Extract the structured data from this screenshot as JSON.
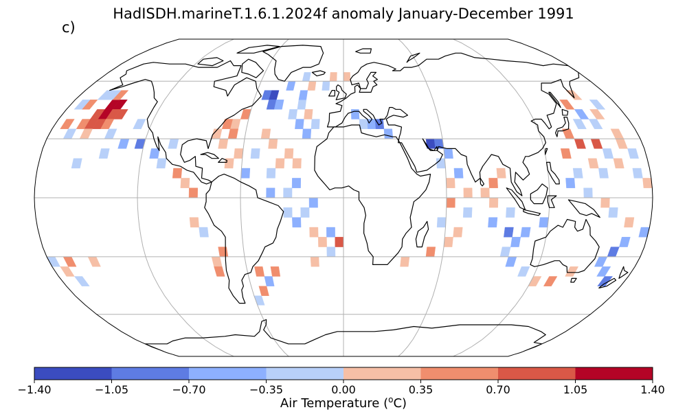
{
  "title": "HadISDH.marineT.1.6.1.2024f anomaly January-December 1991",
  "panel_label": "c)",
  "colorbar": {
    "label_text": "Air Temperature (",
    "label_sup": "o",
    "label_unit": "C)",
    "ticks": [
      "−1.40",
      "−1.05",
      "−0.70",
      "−0.35",
      "0.00",
      "0.35",
      "0.70",
      "1.05",
      "1.40"
    ],
    "bins": [
      -1.4,
      -1.05,
      -0.7,
      -0.35,
      0.0,
      0.35,
      0.7,
      1.05,
      1.4
    ],
    "colors": [
      "#3b4cc0",
      "#5e7ce3",
      "#8db0fe",
      "#b8d0f9",
      "#f6bfa6",
      "#f08e6e",
      "#d95847",
      "#b40426"
    ]
  },
  "map": {
    "projection": "Robinson",
    "central_longitude": 0,
    "grid_spacing_deg": 5,
    "graticule_lon_deg": [
      -120,
      -60,
      0,
      60,
      120
    ],
    "graticule_lat_deg": [
      -60,
      -30,
      0,
      30,
      60
    ],
    "coastline_color": "#000000",
    "gridline_color": "#b0b0b0",
    "anomaly_cells": [
      {
        "lat": 47.5,
        "lon": -152.5,
        "value": 1.2
      },
      {
        "lat": 47.5,
        "lon": -147.5,
        "value": 1.2
      },
      {
        "lat": 42.5,
        "lon": -157.5,
        "value": 0.9
      },
      {
        "lat": 42.5,
        "lon": -152.5,
        "value": 1.2
      },
      {
        "lat": 42.5,
        "lon": -147.5,
        "value": 0.9
      },
      {
        "lat": 42.5,
        "lon": -142.5,
        "value": 0.8
      },
      {
        "lat": 37.5,
        "lon": -162.5,
        "value": 0.5
      },
      {
        "lat": 37.5,
        "lon": -157.5,
        "value": 0.8
      },
      {
        "lat": 37.5,
        "lon": -152.5,
        "value": 0.8
      },
      {
        "lat": 37.5,
        "lon": -147.5,
        "value": 0.5
      },
      {
        "lat": 52.5,
        "lon": -152.5,
        "value": 0.5
      },
      {
        "lat": 52.5,
        "lon": -157.5,
        "value": -0.2
      },
      {
        "lat": 52.5,
        "lon": -162.5,
        "value": -0.2
      },
      {
        "lat": 47.5,
        "lon": -167.5,
        "value": 0.5
      },
      {
        "lat": 47.5,
        "lon": -172.5,
        "value": -0.2
      },
      {
        "lat": 37.5,
        "lon": -172.5,
        "value": 0.5
      },
      {
        "lat": 32.5,
        "lon": -167.5,
        "value": -0.2
      },
      {
        "lat": 32.5,
        "lon": -157.5,
        "value": 0.2
      },
      {
        "lat": 32.5,
        "lon": -142.5,
        "value": -0.2
      },
      {
        "lat": 27.5,
        "lon": -132.5,
        "value": -0.5
      },
      {
        "lat": 27.5,
        "lon": -122.5,
        "value": -0.8
      },
      {
        "lat": 22.5,
        "lon": -112.5,
        "value": -0.5
      },
      {
        "lat": 17.5,
        "lon": -107.5,
        "value": -0.2
      },
      {
        "lat": 12.5,
        "lon": -97.5,
        "value": 0.5
      },
      {
        "lat": 7.5,
        "lon": -92.5,
        "value": 0.2
      },
      {
        "lat": 2.5,
        "lon": -87.5,
        "value": 0.5
      },
      {
        "lat": 52.5,
        "lon": -52.5,
        "value": -0.9
      },
      {
        "lat": 52.5,
        "lon": -47.5,
        "value": -1.2
      },
      {
        "lat": 47.5,
        "lon": -47.5,
        "value": -0.9
      },
      {
        "lat": 47.5,
        "lon": -42.5,
        "value": -0.5
      },
      {
        "lat": 57.5,
        "lon": -37.5,
        "value": -0.5
      },
      {
        "lat": 62.5,
        "lon": -27.5,
        "value": -0.2
      },
      {
        "lat": 57.5,
        "lon": -22.5,
        "value": 0.2
      },
      {
        "lat": 62.5,
        "lon": -7.5,
        "value": 0.2
      },
      {
        "lat": 62.5,
        "lon": 2.5,
        "value": 0.2
      },
      {
        "lat": 42.5,
        "lon": -62.5,
        "value": 0.5
      },
      {
        "lat": 37.5,
        "lon": -67.5,
        "value": 0.2
      },
      {
        "lat": 37.5,
        "lon": -72.5,
        "value": 0.5
      },
      {
        "lat": 32.5,
        "lon": -77.5,
        "value": 0.2
      },
      {
        "lat": 32.5,
        "lon": -67.5,
        "value": 0.5
      },
      {
        "lat": 27.5,
        "lon": -72.5,
        "value": 0.2
      },
      {
        "lat": 22.5,
        "lon": -62.5,
        "value": 0.2
      },
      {
        "lat": 17.5,
        "lon": -67.5,
        "value": 0.2
      },
      {
        "lat": 27.5,
        "lon": -42.5,
        "value": 0.2
      },
      {
        "lat": 22.5,
        "lon": -32.5,
        "value": 0.2
      },
      {
        "lat": 17.5,
        "lon": -27.5,
        "value": 0.2
      },
      {
        "lat": 42.5,
        "lon": -32.5,
        "value": -0.2
      },
      {
        "lat": 37.5,
        "lon": -27.5,
        "value": -0.5
      },
      {
        "lat": 37.5,
        "lon": -17.5,
        "value": -0.2
      },
      {
        "lat": 32.5,
        "lon": -22.5,
        "value": -0.5
      },
      {
        "lat": 12.5,
        "lon": -42.5,
        "value": -0.2
      },
      {
        "lat": 7.5,
        "lon": -27.5,
        "value": -0.5
      },
      {
        "lat": 2.5,
        "lon": -32.5,
        "value": -0.2
      },
      {
        "lat": -2.5,
        "lon": -17.5,
        "value": -0.5
      },
      {
        "lat": -7.5,
        "lon": -22.5,
        "value": -0.2
      },
      {
        "lat": -12.5,
        "lon": -27.5,
        "value": -0.5
      },
      {
        "lat": -17.5,
        "lon": -17.5,
        "value": 0.2
      },
      {
        "lat": -22.5,
        "lon": -2.5,
        "value": 0.9
      },
      {
        "lat": -22.5,
        "lon": -12.5,
        "value": 0.2
      },
      {
        "lat": -17.5,
        "lon": -7.5,
        "value": -0.5
      },
      {
        "lat": -27.5,
        "lon": -7.5,
        "value": -0.2
      },
      {
        "lat": -32.5,
        "lon": -17.5,
        "value": 0.2
      },
      {
        "lat": -37.5,
        "lon": -42.5,
        "value": 0.5
      },
      {
        "lat": -42.5,
        "lon": -47.5,
        "value": -0.5
      },
      {
        "lat": -37.5,
        "lon": -52.5,
        "value": 0.5
      },
      {
        "lat": -47.5,
        "lon": -52.5,
        "value": 0.5
      },
      {
        "lat": -52.5,
        "lon": -57.5,
        "value": -0.2
      },
      {
        "lat": -32.5,
        "lon": -77.5,
        "value": 0.2
      },
      {
        "lat": -27.5,
        "lon": -72.5,
        "value": 0.5
      },
      {
        "lat": -37.5,
        "lon": -77.5,
        "value": 0.5
      },
      {
        "lat": -17.5,
        "lon": -82.5,
        "value": -0.2
      },
      {
        "lat": -12.5,
        "lon": -87.5,
        "value": 0.2
      },
      {
        "lat": 37.5,
        "lon": 12.5,
        "value": -0.2
      },
      {
        "lat": 37.5,
        "lon": 17.5,
        "value": -0.5
      },
      {
        "lat": 37.5,
        "lon": 22.5,
        "value": -0.9
      },
      {
        "lat": 32.5,
        "lon": 27.5,
        "value": -0.5
      },
      {
        "lat": 42.5,
        "lon": 7.5,
        "value": -0.5
      },
      {
        "lat": 27.5,
        "lon": 52.5,
        "value": -1.2
      },
      {
        "lat": 27.5,
        "lon": 57.5,
        "value": -0.9
      },
      {
        "lat": 22.5,
        "lon": 62.5,
        "value": -0.5
      },
      {
        "lat": 17.5,
        "lon": 57.5,
        "value": -0.2
      },
      {
        "lat": 12.5,
        "lon": 67.5,
        "value": -0.5
      },
      {
        "lat": 7.5,
        "lon": 62.5,
        "value": 0.2
      },
      {
        "lat": 2.5,
        "lon": 72.5,
        "value": 0.2
      },
      {
        "lat": -2.5,
        "lon": 62.5,
        "value": 0.5
      },
      {
        "lat": 2.5,
        "lon": 82.5,
        "value": 0.2
      },
      {
        "lat": 7.5,
        "lon": 87.5,
        "value": 0.5
      },
      {
        "lat": 12.5,
        "lon": 92.5,
        "value": 0.2
      },
      {
        "lat": -7.5,
        "lon": 72.5,
        "value": -0.2
      },
      {
        "lat": -12.5,
        "lon": 57.5,
        "value": -0.2
      },
      {
        "lat": -17.5,
        "lon": 67.5,
        "value": 0.2
      },
      {
        "lat": -22.5,
        "lon": 62.5,
        "value": 0.2
      },
      {
        "lat": -27.5,
        "lon": 52.5,
        "value": 0.5
      },
      {
        "lat": -32.5,
        "lon": 37.5,
        "value": 0.2
      },
      {
        "lat": -12.5,
        "lon": 87.5,
        "value": -0.5
      },
      {
        "lat": -17.5,
        "lon": 97.5,
        "value": -0.8
      },
      {
        "lat": -22.5,
        "lon": 102.5,
        "value": -0.5
      },
      {
        "lat": -27.5,
        "lon": 97.5,
        "value": -0.2
      },
      {
        "lat": -32.5,
        "lon": 102.5,
        "value": -0.5
      },
      {
        "lat": -37.5,
        "lon": 112.5,
        "value": -0.2
      },
      {
        "lat": -42.5,
        "lon": 122.5,
        "value": 0.2
      },
      {
        "lat": -42.5,
        "lon": 132.5,
        "value": 0.5
      },
      {
        "lat": -37.5,
        "lon": 142.5,
        "value": 0.2
      },
      {
        "lat": -32.5,
        "lon": 157.5,
        "value": -0.5
      },
      {
        "lat": -27.5,
        "lon": 162.5,
        "value": -0.8
      },
      {
        "lat": -22.5,
        "lon": 167.5,
        "value": -0.5
      },
      {
        "lat": -37.5,
        "lon": 162.5,
        "value": -0.5
      },
      {
        "lat": -42.5,
        "lon": 167.5,
        "value": -0.8
      },
      {
        "lat": -17.5,
        "lon": 177.5,
        "value": -0.5
      },
      {
        "lat": -12.5,
        "lon": 167.5,
        "value": 0.2
      },
      {
        "lat": -7.5,
        "lon": 157.5,
        "value": -0.2
      },
      {
        "lat": -2.5,
        "lon": 152.5,
        "value": 0.2
      },
      {
        "lat": 2.5,
        "lon": 142.5,
        "value": -0.2
      },
      {
        "lat": 7.5,
        "lon": 132.5,
        "value": -0.5
      },
      {
        "lat": 12.5,
        "lon": 137.5,
        "value": -0.2
      },
      {
        "lat": 17.5,
        "lon": 147.5,
        "value": 0.2
      },
      {
        "lat": 22.5,
        "lon": 132.5,
        "value": 0.5
      },
      {
        "lat": 27.5,
        "lon": 142.5,
        "value": 0.8
      },
      {
        "lat": 27.5,
        "lon": 152.5,
        "value": 0.8
      },
      {
        "lat": 32.5,
        "lon": 137.5,
        "value": 0.5
      },
      {
        "lat": 37.5,
        "lon": 147.5,
        "value": -0.2
      },
      {
        "lat": 37.5,
        "lon": 157.5,
        "value": -0.2
      },
      {
        "lat": 42.5,
        "lon": 152.5,
        "value": -0.5
      },
      {
        "lat": 47.5,
        "lon": 147.5,
        "value": 0.5
      },
      {
        "lat": 42.5,
        "lon": 162.5,
        "value": 0.2
      },
      {
        "lat": 47.5,
        "lon": 167.5,
        "value": -0.2
      },
      {
        "lat": 52.5,
        "lon": 157.5,
        "value": 0.2
      },
      {
        "lat": 32.5,
        "lon": 167.5,
        "value": 0.2
      },
      {
        "lat": 22.5,
        "lon": 172.5,
        "value": -0.2
      },
      {
        "lat": 17.5,
        "lon": 162.5,
        "value": 0.2
      },
      {
        "lat": 12.5,
        "lon": 172.5,
        "value": -0.2
      },
      {
        "lat": 7.5,
        "lon": 177.5,
        "value": 0.2
      },
      {
        "lat": -32.5,
        "lon": -167.5,
        "value": 0.5
      },
      {
        "lat": -32.5,
        "lon": -152.5,
        "value": 0.2
      },
      {
        "lat": -32.5,
        "lon": -177.5,
        "value": -0.2
      },
      {
        "lat": -37.5,
        "lon": -172.5,
        "value": 0.2
      },
      {
        "lat": -42.5,
        "lon": -167.5,
        "value": -0.2
      },
      {
        "lat": 27.5,
        "lon": -102.5,
        "value": -0.2
      },
      {
        "lat": 37.5,
        "lon": -127.5,
        "value": -0.2
      },
      {
        "lat": 22.5,
        "lon": -142.5,
        "value": -0.2
      },
      {
        "lat": 17.5,
        "lon": -157.5,
        "value": -0.2
      },
      {
        "lat": 22.5,
        "lon": -52.5,
        "value": -0.2
      },
      {
        "lat": 12.5,
        "lon": -57.5,
        "value": -0.5
      },
      {
        "lat": 2.5,
        "lon": -42.5,
        "value": -0.5
      },
      {
        "lat": -7.5,
        "lon": -32.5,
        "value": -0.2
      },
      {
        "lat": 17.5,
        "lon": -37.5,
        "value": 0.2
      },
      {
        "lat": 32.5,
        "lon": -47.5,
        "value": 0.2
      },
      {
        "lat": 42.5,
        "lon": -22.5,
        "value": 0.2
      },
      {
        "lat": 47.5,
        "lon": -27.5,
        "value": -0.2
      },
      {
        "lat": 52.5,
        "lon": -27.5,
        "value": -0.5
      },
      {
        "lat": 57.5,
        "lon": -12.5,
        "value": -0.2
      },
      {
        "lat": -2.5,
        "lon": 87.5,
        "value": 0.2
      },
      {
        "lat": -7.5,
        "lon": 97.5,
        "value": -0.2
      },
      {
        "lat": 12.5,
        "lon": 152.5,
        "value": -0.2
      },
      {
        "lat": -12.5,
        "lon": 117.5,
        "value": -0.5
      },
      {
        "lat": -17.5,
        "lon": 107.5,
        "value": -0.5
      },
      {
        "lat": 22.5,
        "lon": 157.5,
        "value": -0.2
      },
      {
        "lat": 27.5,
        "lon": 167.5,
        "value": 0.2
      }
    ]
  }
}
